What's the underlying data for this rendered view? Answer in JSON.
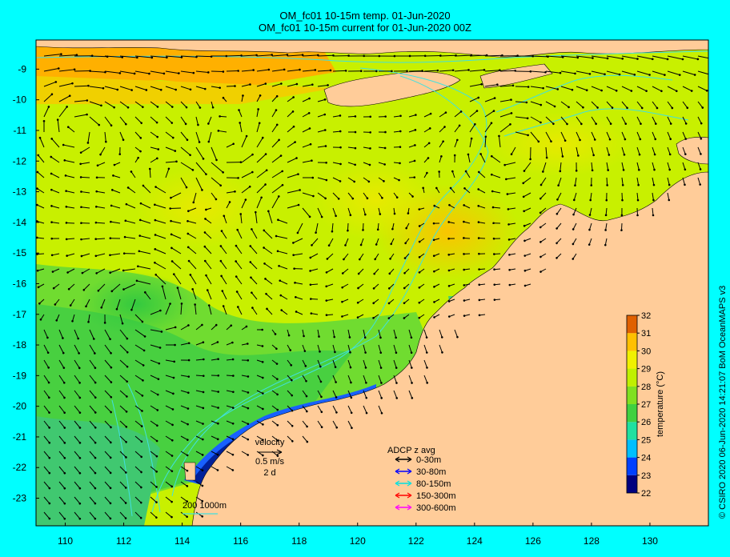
{
  "title_line1": "OM_fc01 10-15m temp. 01-Jun-2020",
  "title_line2": "OM_fc01 10-15m current for 01-Jun-2020 00Z",
  "credit": "© CSIRO 2020  06-Jun-2020 14:21:07 BoM OceanMAPS v3",
  "axes": {
    "lon_ticks": [
      "110",
      "112",
      "114",
      "116",
      "118",
      "120",
      "122",
      "124",
      "126",
      "128",
      "130"
    ],
    "lat_ticks": [
      "-9",
      "-10",
      "-11",
      "-12",
      "-13",
      "-14",
      "-15",
      "-16",
      "-17",
      "-18",
      "-19",
      "-20",
      "-21",
      "-22",
      "-23"
    ],
    "lon_range": [
      109,
      132
    ],
    "lat_range": [
      -23.9,
      -8.05
    ]
  },
  "colorbar": {
    "label": "temperature (°C)",
    "ticks": [
      "22",
      "23",
      "24",
      "25",
      "26",
      "27",
      "28",
      "29",
      "30",
      "31",
      "32"
    ],
    "range": [
      22,
      32
    ],
    "colors": [
      "#00007f",
      "#0040ff",
      "#00bfff",
      "#20e0a0",
      "#40d040",
      "#80e020",
      "#c0f000",
      "#f0f000",
      "#ffc000",
      "#e06000",
      "#a00000"
    ]
  },
  "velocity_scale": {
    "title": "velocity",
    "value": "0.5 m/s",
    "duration": "2 d"
  },
  "adcp_legend": {
    "title": "ADCP z avg",
    "items": [
      {
        "label": "0-30m",
        "color": "#000000"
      },
      {
        "label": "30-80m",
        "color": "#0000ff"
      },
      {
        "label": "80-150m",
        "color": "#00e0e0"
      },
      {
        "label": "150-300m",
        "color": "#ff0000"
      },
      {
        "label": "300-600m",
        "color": "#ff00ff"
      }
    ]
  },
  "isobath_legend": {
    "depths": "200  1000m",
    "color": "#00e0e0"
  },
  "colors": {
    "background": "#00ffff",
    "land": "#ffcc99",
    "ocean_warm": "#ffc000",
    "ocean_mid": "#c8f000",
    "ocean_cool": "#40d040",
    "isobath": "#40e0e0"
  }
}
